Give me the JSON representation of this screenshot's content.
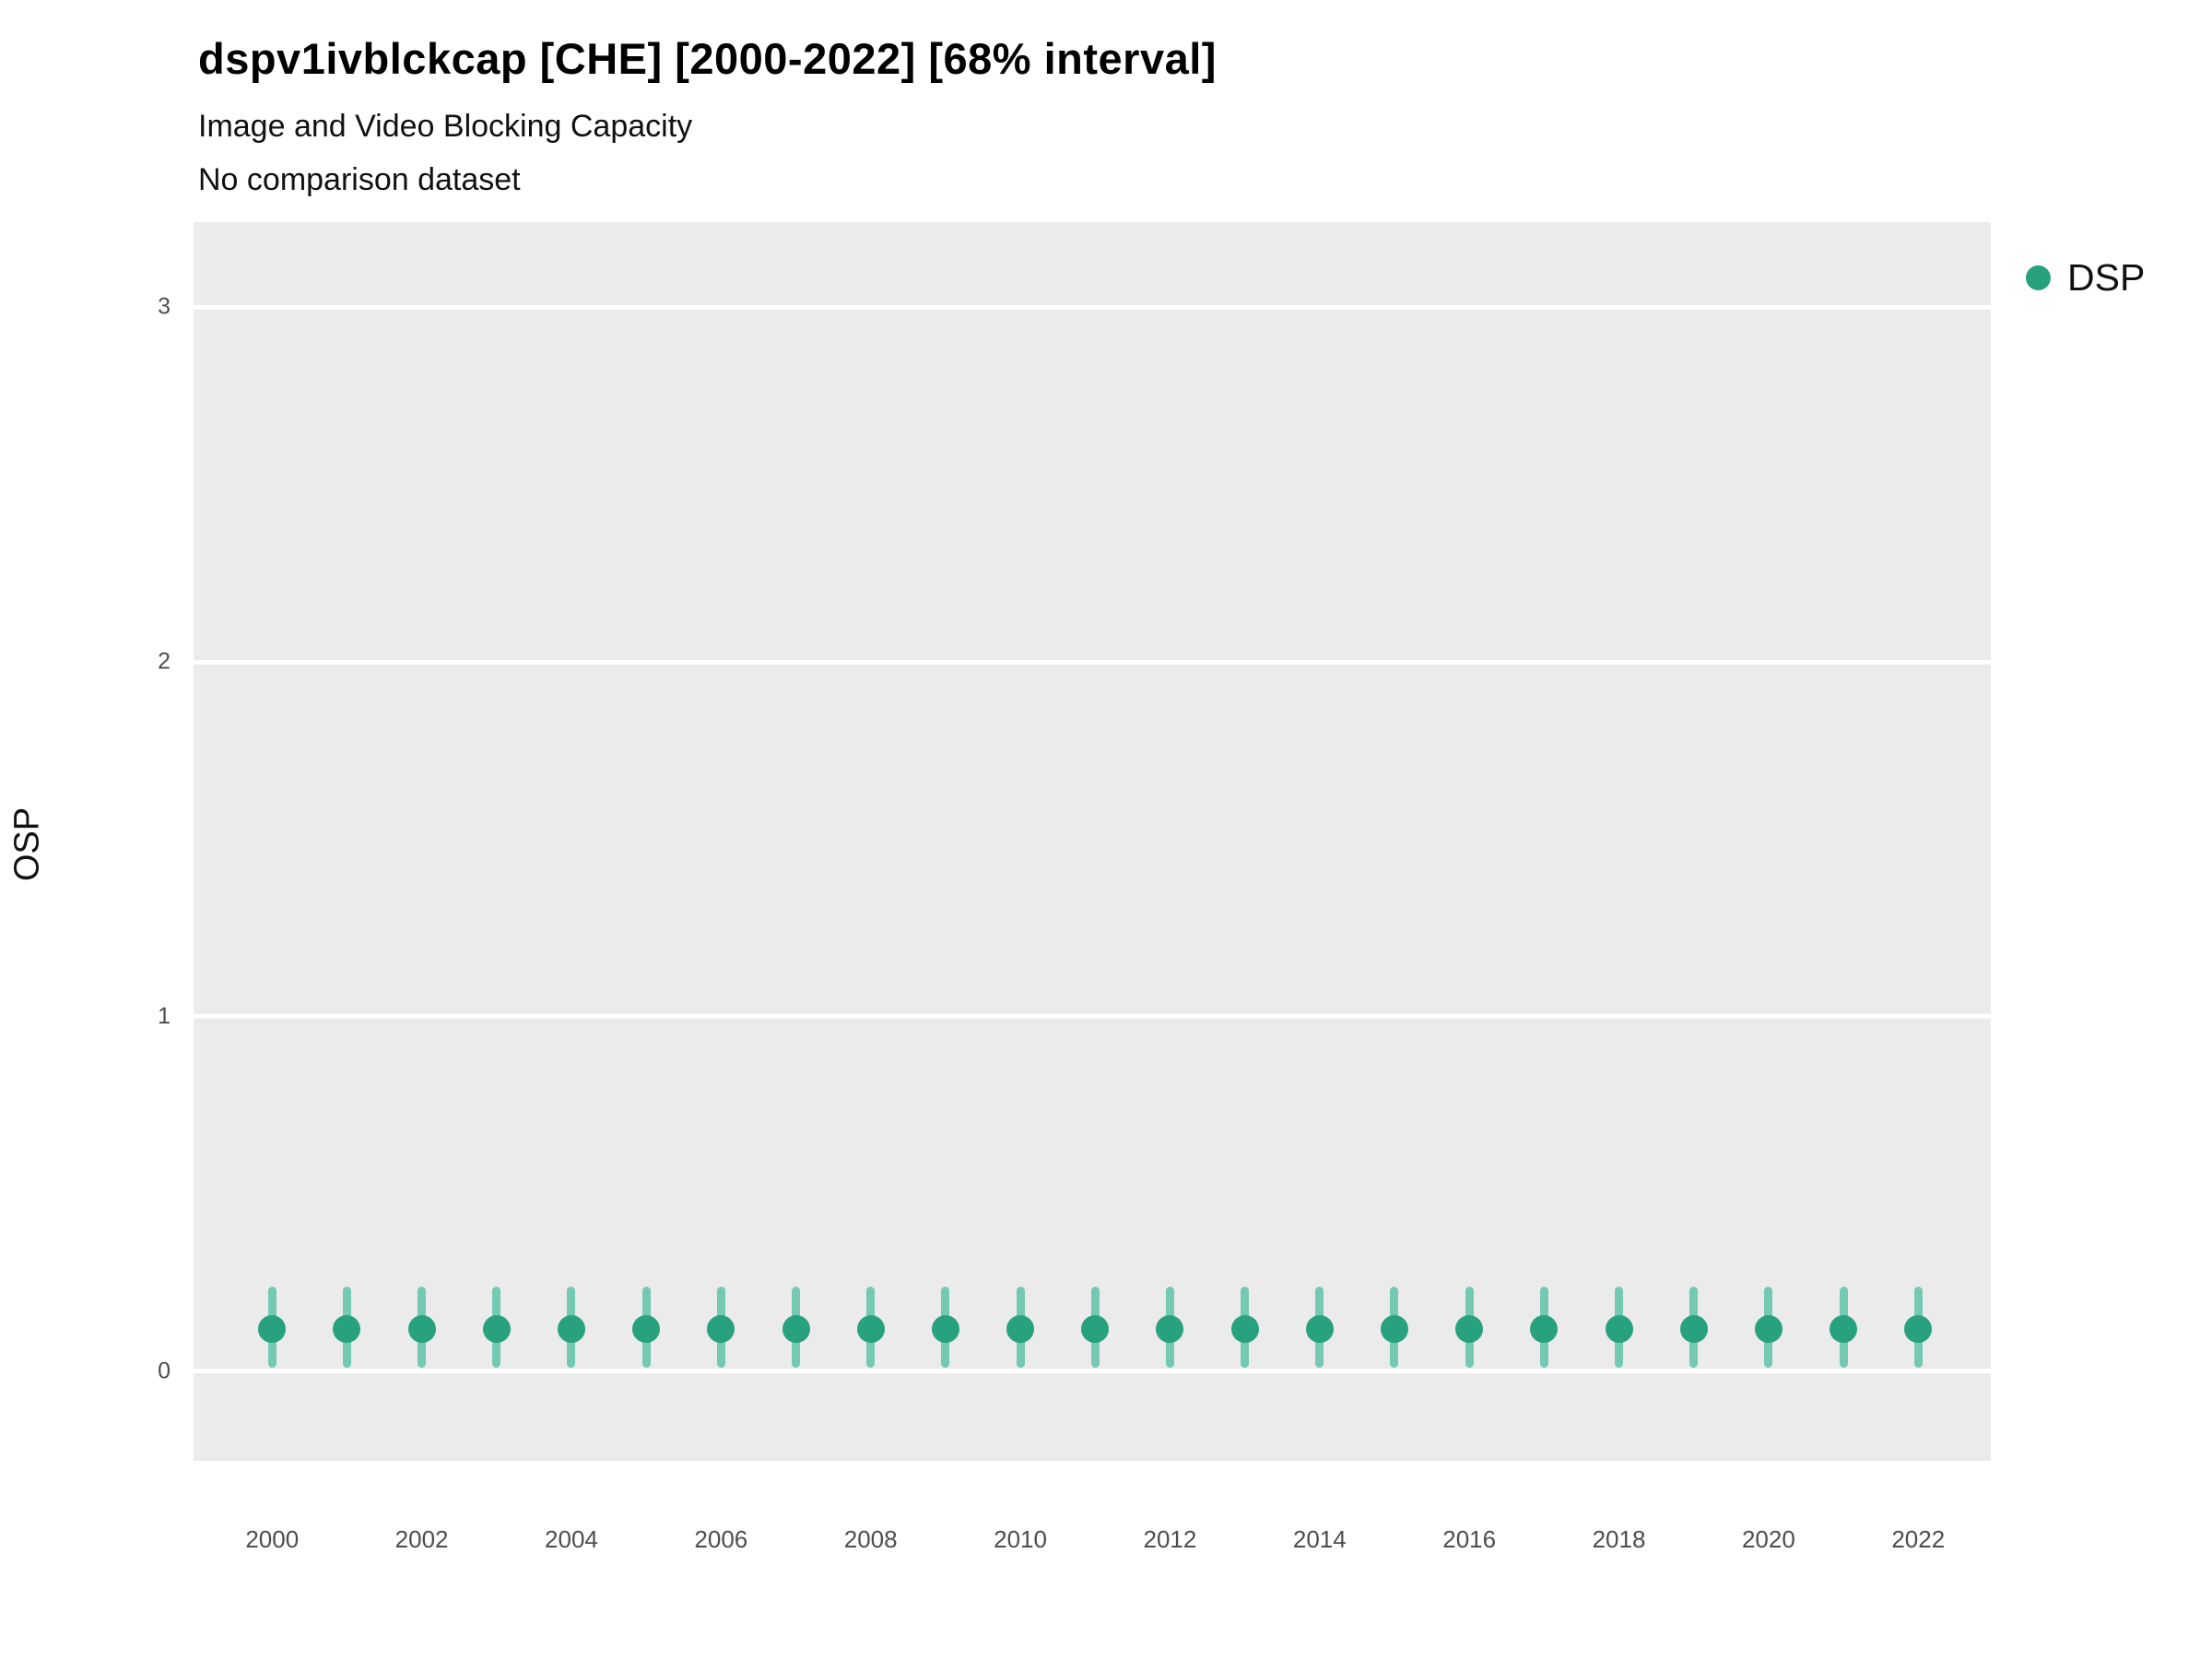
{
  "header": {
    "title": "dspv1ivblckcap [CHE] [2000-2022] [68% interval]",
    "subtitle": "Image and Video Blocking Capacity",
    "note": "No comparison dataset"
  },
  "axes": {
    "y_label": "OSP"
  },
  "legend": {
    "items": [
      {
        "label": "DSP",
        "color": "#27a17e"
      }
    ]
  },
  "colors": {
    "point": "#27a17e",
    "interval": "#74c9b3",
    "panel_bg": "#ebebeb",
    "gridline": "#ffffff",
    "tick_text": "#4d4d4d"
  },
  "chart_data": {
    "type": "scatter",
    "title": "dspv1ivblckcap [CHE] [2000-2022] [68% interval]",
    "subtitle": "Image and Video Blocking Capacity",
    "note": "No comparison dataset",
    "xlabel": "",
    "ylabel": "OSP",
    "legend_position": "right",
    "grid": "major-horizontal",
    "xlim": [
      1998.95,
      2022.97
    ],
    "ylim": [
      -0.252,
      3.239
    ],
    "yticks": [
      0,
      1,
      2,
      3
    ],
    "xticks": [
      2000,
      2002,
      2004,
      2006,
      2008,
      2010,
      2012,
      2014,
      2016,
      2018,
      2020,
      2022
    ],
    "series": [
      {
        "name": "DSP",
        "x": [
          2000,
          2001,
          2002,
          2003,
          2004,
          2005,
          2006,
          2007,
          2008,
          2009,
          2010,
          2011,
          2012,
          2013,
          2014,
          2015,
          2016,
          2017,
          2018,
          2019,
          2020,
          2021,
          2022
        ],
        "y": [
          0.12,
          0.12,
          0.12,
          0.12,
          0.12,
          0.12,
          0.12,
          0.12,
          0.12,
          0.12,
          0.12,
          0.12,
          0.12,
          0.12,
          0.12,
          0.12,
          0.12,
          0.12,
          0.12,
          0.12,
          0.12,
          0.12,
          0.12
        ],
        "ylow": [
          0.01,
          0.01,
          0.01,
          0.01,
          0.01,
          0.01,
          0.01,
          0.01,
          0.01,
          0.01,
          0.01,
          0.01,
          0.01,
          0.01,
          0.01,
          0.01,
          0.01,
          0.01,
          0.01,
          0.01,
          0.01,
          0.01,
          0.01
        ],
        "yhigh": [
          0.24,
          0.24,
          0.24,
          0.24,
          0.24,
          0.24,
          0.24,
          0.24,
          0.24,
          0.24,
          0.24,
          0.24,
          0.24,
          0.24,
          0.24,
          0.24,
          0.24,
          0.24,
          0.24,
          0.24,
          0.24,
          0.24,
          0.24
        ]
      }
    ]
  }
}
